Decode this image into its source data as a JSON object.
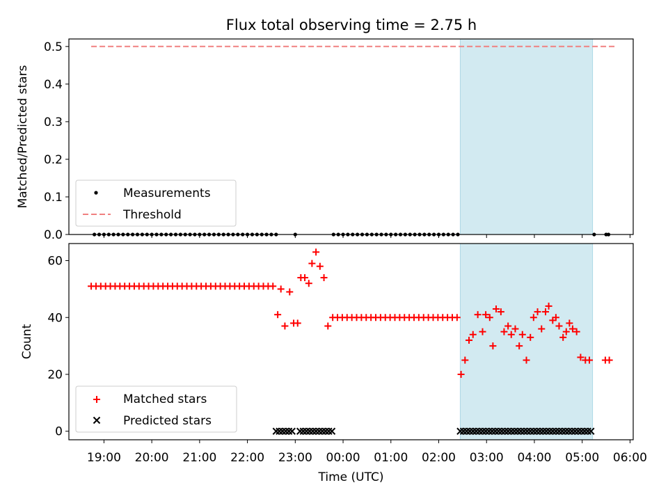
{
  "title": "Flux total observing time = 2.75 h",
  "colors": {
    "matched": "#ff0000",
    "predicted": "#000000",
    "threshold": "#f08080",
    "shade": "#add8e6"
  },
  "chart_data": [
    {
      "type": "scatter",
      "panel": "top",
      "ylabel": "Matched/Predicted stars",
      "ylim": [
        0,
        0.5
      ],
      "yticks": [
        0.0,
        0.1,
        0.2,
        0.3,
        0.4,
        0.5
      ],
      "legend_position": "lower-left",
      "shaded_interval": [
        "02:27",
        "05:13"
      ],
      "series": [
        {
          "name": "Measurements",
          "marker": "dot",
          "points": [
            [
              "18:48",
              0
            ],
            [
              "18:54",
              0
            ],
            [
              "19:00",
              0
            ],
            [
              "19:06",
              0
            ],
            [
              "19:12",
              0
            ],
            [
              "19:18",
              0
            ],
            [
              "19:24",
              0
            ],
            [
              "19:30",
              0
            ],
            [
              "19:36",
              0
            ],
            [
              "19:42",
              0
            ],
            [
              "19:48",
              0
            ],
            [
              "19:54",
              0
            ],
            [
              "20:00",
              0
            ],
            [
              "20:06",
              0
            ],
            [
              "20:12",
              0
            ],
            [
              "20:18",
              0
            ],
            [
              "20:24",
              0
            ],
            [
              "20:30",
              0
            ],
            [
              "20:36",
              0
            ],
            [
              "20:42",
              0
            ],
            [
              "20:48",
              0
            ],
            [
              "20:54",
              0
            ],
            [
              "21:00",
              0
            ],
            [
              "21:06",
              0
            ],
            [
              "21:12",
              0
            ],
            [
              "21:18",
              0
            ],
            [
              "21:24",
              0
            ],
            [
              "21:30",
              0
            ],
            [
              "21:36",
              0
            ],
            [
              "21:42",
              0
            ],
            [
              "21:48",
              0
            ],
            [
              "21:54",
              0
            ],
            [
              "22:00",
              0
            ],
            [
              "22:06",
              0
            ],
            [
              "22:12",
              0
            ],
            [
              "22:18",
              0
            ],
            [
              "22:24",
              0
            ],
            [
              "22:30",
              0
            ],
            [
              "22:36",
              0
            ],
            [
              "23:00",
              0
            ],
            [
              "23:48",
              0
            ],
            [
              "23:54",
              0
            ],
            [
              "00:00",
              0
            ],
            [
              "00:06",
              0
            ],
            [
              "00:12",
              0
            ],
            [
              "00:18",
              0
            ],
            [
              "00:24",
              0
            ],
            [
              "00:30",
              0
            ],
            [
              "00:36",
              0
            ],
            [
              "00:42",
              0
            ],
            [
              "00:48",
              0
            ],
            [
              "00:54",
              0
            ],
            [
              "01:00",
              0
            ],
            [
              "01:06",
              0
            ],
            [
              "01:12",
              0
            ],
            [
              "01:18",
              0
            ],
            [
              "01:24",
              0
            ],
            [
              "01:30",
              0
            ],
            [
              "01:36",
              0
            ],
            [
              "01:42",
              0
            ],
            [
              "01:48",
              0
            ],
            [
              "01:54",
              0
            ],
            [
              "02:00",
              0
            ],
            [
              "02:06",
              0
            ],
            [
              "02:12",
              0
            ],
            [
              "02:18",
              0
            ],
            [
              "02:24",
              0
            ],
            [
              "05:15",
              0
            ],
            [
              "05:30",
              0
            ],
            [
              "05:33",
              0
            ]
          ]
        },
        {
          "name": "Threshold",
          "style": "dashed",
          "x": [
            "18:44",
            "05:42"
          ],
          "y": [
            0.5,
            0.5
          ]
        }
      ]
    },
    {
      "type": "scatter",
      "panel": "bottom",
      "xlabel": "Time (UTC)",
      "ylabel": "Count",
      "ylim": [
        -3,
        66
      ],
      "yticks": [
        0,
        20,
        40,
        60
      ],
      "xticks": [
        "19:00",
        "20:00",
        "21:00",
        "22:00",
        "23:00",
        "00:00",
        "01:00",
        "02:00",
        "03:00",
        "04:00",
        "05:00",
        "06:00"
      ],
      "xlim": [
        "18:16",
        "06:04"
      ],
      "legend_position": "lower-left",
      "shaded_interval": [
        "02:27",
        "05:13"
      ],
      "series": [
        {
          "name": "Matched stars",
          "marker": "plus",
          "points": [
            [
              "18:44",
              51
            ],
            [
              "18:50",
              51
            ],
            [
              "18:56",
              51
            ],
            [
              "19:02",
              51
            ],
            [
              "19:08",
              51
            ],
            [
              "19:14",
              51
            ],
            [
              "19:20",
              51
            ],
            [
              "19:26",
              51
            ],
            [
              "19:32",
              51
            ],
            [
              "19:38",
              51
            ],
            [
              "19:44",
              51
            ],
            [
              "19:50",
              51
            ],
            [
              "19:56",
              51
            ],
            [
              "20:02",
              51
            ],
            [
              "20:08",
              51
            ],
            [
              "20:14",
              51
            ],
            [
              "20:20",
              51
            ],
            [
              "20:26",
              51
            ],
            [
              "20:32",
              51
            ],
            [
              "20:38",
              51
            ],
            [
              "20:44",
              51
            ],
            [
              "20:50",
              51
            ],
            [
              "20:56",
              51
            ],
            [
              "21:02",
              51
            ],
            [
              "21:08",
              51
            ],
            [
              "21:14",
              51
            ],
            [
              "21:20",
              51
            ],
            [
              "21:26",
              51
            ],
            [
              "21:32",
              51
            ],
            [
              "21:38",
              51
            ],
            [
              "21:44",
              51
            ],
            [
              "21:50",
              51
            ],
            [
              "21:56",
              51
            ],
            [
              "22:02",
              51
            ],
            [
              "22:08",
              51
            ],
            [
              "22:14",
              51
            ],
            [
              "22:20",
              51
            ],
            [
              "22:26",
              51
            ],
            [
              "22:32",
              51
            ],
            [
              "22:38",
              41
            ],
            [
              "22:42",
              50
            ],
            [
              "22:47",
              37
            ],
            [
              "22:53",
              49
            ],
            [
              "22:58",
              38
            ],
            [
              "23:03",
              38
            ],
            [
              "23:07",
              54
            ],
            [
              "23:12",
              54
            ],
            [
              "23:17",
              52
            ],
            [
              "23:21",
              59
            ],
            [
              "23:26",
              63
            ],
            [
              "23:31",
              58
            ],
            [
              "23:36",
              54
            ],
            [
              "23:41",
              37
            ],
            [
              "23:47",
              40
            ],
            [
              "23:53",
              40
            ],
            [
              "23:59",
              40
            ],
            [
              "00:05",
              40
            ],
            [
              "00:11",
              40
            ],
            [
              "00:17",
              40
            ],
            [
              "00:23",
              40
            ],
            [
              "00:29",
              40
            ],
            [
              "00:35",
              40
            ],
            [
              "00:41",
              40
            ],
            [
              "00:47",
              40
            ],
            [
              "00:53",
              40
            ],
            [
              "00:59",
              40
            ],
            [
              "01:05",
              40
            ],
            [
              "01:11",
              40
            ],
            [
              "01:17",
              40
            ],
            [
              "01:23",
              40
            ],
            [
              "01:29",
              40
            ],
            [
              "01:35",
              40
            ],
            [
              "01:41",
              40
            ],
            [
              "01:47",
              40
            ],
            [
              "01:53",
              40
            ],
            [
              "01:59",
              40
            ],
            [
              "02:05",
              40
            ],
            [
              "02:11",
              40
            ],
            [
              "02:17",
              40
            ],
            [
              "02:23",
              40
            ],
            [
              "02:28",
              20
            ],
            [
              "02:33",
              25
            ],
            [
              "02:38",
              32
            ],
            [
              "02:43",
              34
            ],
            [
              "02:49",
              41
            ],
            [
              "02:55",
              35
            ],
            [
              "02:59",
              41
            ],
            [
              "03:04",
              40
            ],
            [
              "03:08",
              30
            ],
            [
              "03:12",
              43
            ],
            [
              "03:18",
              42
            ],
            [
              "03:22",
              35
            ],
            [
              "03:27",
              37
            ],
            [
              "03:31",
              34
            ],
            [
              "03:36",
              36
            ],
            [
              "03:41",
              30
            ],
            [
              "03:45",
              34
            ],
            [
              "03:50",
              25
            ],
            [
              "03:55",
              33
            ],
            [
              "03:59",
              40
            ],
            [
              "04:04",
              42
            ],
            [
              "04:09",
              36
            ],
            [
              "04:14",
              42
            ],
            [
              "04:18",
              44
            ],
            [
              "04:23",
              39
            ],
            [
              "04:27",
              40
            ],
            [
              "04:31",
              37
            ],
            [
              "04:36",
              33
            ],
            [
              "04:40",
              35
            ],
            [
              "04:44",
              38
            ],
            [
              "04:48",
              36
            ],
            [
              "04:53",
              35
            ],
            [
              "04:58",
              26
            ],
            [
              "05:04",
              25
            ],
            [
              "05:09",
              25
            ],
            [
              "05:29",
              25
            ],
            [
              "05:34",
              25
            ]
          ]
        },
        {
          "name": "Predicted stars",
          "marker": "x",
          "points": [
            [
              "22:36",
              0
            ],
            [
              "22:40",
              0
            ],
            [
              "22:44",
              0
            ],
            [
              "22:48",
              0
            ],
            [
              "22:52",
              0
            ],
            [
              "22:56",
              0
            ],
            [
              "23:06",
              0
            ],
            [
              "23:10",
              0
            ],
            [
              "23:14",
              0
            ],
            [
              "23:18",
              0
            ],
            [
              "23:22",
              0
            ],
            [
              "23:26",
              0
            ],
            [
              "23:30",
              0
            ],
            [
              "23:34",
              0
            ],
            [
              "23:38",
              0
            ],
            [
              "23:42",
              0
            ],
            [
              "23:46",
              0
            ],
            [
              "02:27",
              0
            ],
            [
              "02:31",
              0
            ],
            [
              "02:35",
              0
            ],
            [
              "02:39",
              0
            ],
            [
              "02:43",
              0
            ],
            [
              "02:47",
              0
            ],
            [
              "02:51",
              0
            ],
            [
              "02:55",
              0
            ],
            [
              "02:59",
              0
            ],
            [
              "03:03",
              0
            ],
            [
              "03:07",
              0
            ],
            [
              "03:11",
              0
            ],
            [
              "03:15",
              0
            ],
            [
              "03:19",
              0
            ],
            [
              "03:23",
              0
            ],
            [
              "03:27",
              0
            ],
            [
              "03:31",
              0
            ],
            [
              "03:35",
              0
            ],
            [
              "03:39",
              0
            ],
            [
              "03:43",
              0
            ],
            [
              "03:47",
              0
            ],
            [
              "03:51",
              0
            ],
            [
              "03:55",
              0
            ],
            [
              "03:59",
              0
            ],
            [
              "04:03",
              0
            ],
            [
              "04:07",
              0
            ],
            [
              "04:11",
              0
            ],
            [
              "04:15",
              0
            ],
            [
              "04:19",
              0
            ],
            [
              "04:23",
              0
            ],
            [
              "04:27",
              0
            ],
            [
              "04:31",
              0
            ],
            [
              "04:35",
              0
            ],
            [
              "04:39",
              0
            ],
            [
              "04:43",
              0
            ],
            [
              "04:47",
              0
            ],
            [
              "04:51",
              0
            ],
            [
              "04:55",
              0
            ],
            [
              "04:59",
              0
            ],
            [
              "05:03",
              0
            ],
            [
              "05:07",
              0
            ],
            [
              "05:11",
              0
            ]
          ]
        }
      ]
    }
  ]
}
